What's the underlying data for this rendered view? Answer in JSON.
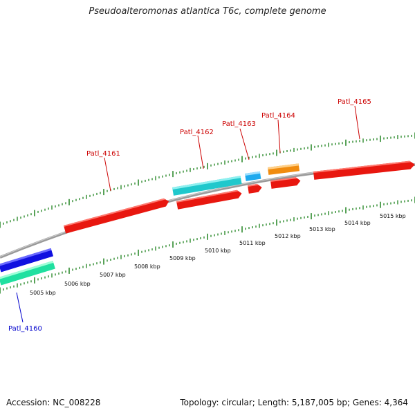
{
  "title": "Pseudoalteromonas atlantica T6c, complete genome",
  "footer": {
    "accession": "Accession: NC_008228",
    "summary": "Topology: circular; Length: 5,187,005 bp; Genes: 4,364"
  },
  "colors": {
    "backbone": "#8a8a8a",
    "tick": "#2e8b2e",
    "cds_red": "#e8170f",
    "cds_cyan": "#20c8cc",
    "cds_lightblue": "#1eaaee",
    "cds_orange": "#f08c10",
    "cds_blue": "#1010e0",
    "cds_green": "#20e0a0",
    "label_red": "#cc0000",
    "label_blue": "#0000cc"
  },
  "scale_labels": [
    "5005 kbp",
    "5006 kbp",
    "5007 kbp",
    "5008 kbp",
    "5009 kbp",
    "5010 kbp",
    "5011 kbp",
    "5012 kbp",
    "5013 kbp",
    "5014 kbp",
    "5015 kbp"
  ],
  "gene_labels": [
    {
      "id": "g4160",
      "text": "Patl_4160",
      "color": "#0000cc"
    },
    {
      "id": "g4161",
      "text": "Patl_4161",
      "color": "#cc0000"
    },
    {
      "id": "g4162",
      "text": "Patl_4162",
      "color": "#cc0000"
    },
    {
      "id": "g4163",
      "text": "Patl_4163",
      "color": "#cc0000"
    },
    {
      "id": "g4164",
      "text": "Patl_4164",
      "color": "#cc0000"
    },
    {
      "id": "g4165",
      "text": "Patl_4165",
      "color": "#cc0000"
    }
  ]
}
